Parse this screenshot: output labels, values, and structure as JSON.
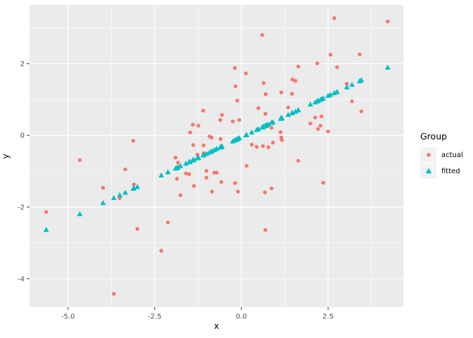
{
  "colors": {
    "actual": "#F8766D",
    "fitted": "#00BFC4",
    "panel_bg": "#EBEBEB",
    "grid": "#FFFFFF",
    "tick_text": "#4D4D4D",
    "axis_title_text": "#000000",
    "legend_key_bg": "#F2F2F2",
    "tick_mark": "#333333"
  },
  "chart_data": {
    "type": "scatter",
    "title": "",
    "xlabel": "x",
    "ylabel": "y",
    "xlim": [
      -6.11,
      4.67
    ],
    "ylim": [
      -4.79,
      3.64
    ],
    "grid": "white major+minor gridlines on gray panel",
    "x_ticks": {
      "values": [
        -5.0,
        -2.5,
        0.0,
        2.5
      ],
      "labels": [
        "-5.0",
        "-2.5",
        "0.0",
        "2.5"
      ],
      "minor": [
        -3.75,
        -1.25,
        1.25,
        3.75
      ]
    },
    "y_ticks": {
      "values": [
        -4,
        -2,
        0,
        2
      ],
      "labels": [
        "-4",
        "-2",
        "0",
        "2"
      ],
      "minor": [
        -3,
        -1,
        1,
        3
      ]
    },
    "legend": {
      "title": "Group",
      "position": "right",
      "items": [
        {
          "label": "actual",
          "shape": "circle",
          "color": "#F8766D"
        },
        {
          "label": "fitted",
          "shape": "triangle",
          "color": "#00BFC4"
        }
      ]
    },
    "fitted_line": {
      "slope": 0.46,
      "intercept": -0.055
    },
    "series": [
      {
        "name": "actual",
        "shape": "circle",
        "color": "#F8766D",
        "points": [
          [
            -5.63,
            -2.14
          ],
          [
            -4.66,
            -0.69
          ],
          [
            -3.99,
            -1.46
          ],
          [
            -3.68,
            -4.42
          ],
          [
            -3.51,
            -1.75
          ],
          [
            -3.35,
            -0.95
          ],
          [
            -3.12,
            -0.15
          ],
          [
            -3.1,
            -1.37
          ],
          [
            -3.0,
            -2.61
          ],
          [
            -2.31,
            -3.22
          ],
          [
            -2.12,
            -2.43
          ],
          [
            -1.9,
            -0.62
          ],
          [
            -1.86,
            -1.21
          ],
          [
            -1.83,
            -0.76
          ],
          [
            -1.76,
            -1.67
          ],
          [
            -1.6,
            -1.06
          ],
          [
            -1.51,
            -1.08
          ],
          [
            -1.48,
            0.08
          ],
          [
            -1.4,
            0.3
          ],
          [
            -1.39,
            -0.27
          ],
          [
            -1.37,
            -1.41
          ],
          [
            -1.27,
            -0.54
          ],
          [
            -1.24,
            0.27
          ],
          [
            -1.1,
            0.69
          ],
          [
            -1.09,
            -0.5
          ],
          [
            -1.09,
            -0.28
          ],
          [
            -1.01,
            -0.99
          ],
          [
            -1.01,
            -1.18
          ],
          [
            -0.92,
            -0.03
          ],
          [
            -0.86,
            -0.06
          ],
          [
            -0.85,
            -1.57
          ],
          [
            -0.78,
            -1.04
          ],
          [
            -0.71,
            -1.04
          ],
          [
            -0.61,
            0.43
          ],
          [
            -0.6,
            -0.1
          ],
          [
            -0.58,
            -1.3
          ],
          [
            -0.56,
            0.57
          ],
          [
            -0.25,
            0.39
          ],
          [
            -0.19,
            1.88
          ],
          [
            -0.18,
            -1.33
          ],
          [
            -0.17,
            1.37
          ],
          [
            -0.12,
            0.97
          ],
          [
            -0.1,
            -1.57
          ],
          [
            -0.06,
            0.43
          ],
          [
            0.13,
            1.73
          ],
          [
            0.15,
            -0.85
          ],
          [
            0.3,
            -0.26
          ],
          [
            0.44,
            -0.32
          ],
          [
            0.49,
            0.76
          ],
          [
            0.6,
            2.8
          ],
          [
            0.62,
            -0.3
          ],
          [
            0.64,
            1.46
          ],
          [
            0.68,
            -1.59
          ],
          [
            0.69,
            0.6
          ],
          [
            0.69,
            -2.64
          ],
          [
            0.7,
            1.15
          ],
          [
            0.73,
            0.3
          ],
          [
            0.78,
            -0.33
          ],
          [
            0.87,
            0.21
          ],
          [
            0.87,
            -1.48
          ],
          [
            0.91,
            -0.2
          ],
          [
            1.13,
            0.09
          ],
          [
            1.15,
            -0.06
          ],
          [
            1.15,
            1.2
          ],
          [
            1.17,
            -0.13
          ],
          [
            1.35,
            0.78
          ],
          [
            1.46,
            1.16
          ],
          [
            1.47,
            1.56
          ],
          [
            1.56,
            1.52
          ],
          [
            1.64,
            1.92
          ],
          [
            1.64,
            -0.71
          ],
          [
            1.99,
            0.33
          ],
          [
            2.13,
            0.5
          ],
          [
            2.19,
            2.01
          ],
          [
            2.21,
            0.18
          ],
          [
            2.28,
            0.27
          ],
          [
            2.31,
            0.53
          ],
          [
            2.36,
            -1.32
          ],
          [
            2.5,
            0.11
          ],
          [
            2.57,
            2.25
          ],
          [
            2.68,
            3.27
          ],
          [
            2.76,
            1.9
          ],
          [
            3.04,
            1.44
          ],
          [
            3.19,
            0.95
          ],
          [
            3.41,
            2.26
          ],
          [
            3.46,
            0.67
          ],
          [
            4.22,
            3.18
          ]
        ]
      },
      {
        "name": "fitted",
        "shape": "triangle",
        "color": "#00BFC4",
        "points": [
          [
            -5.63,
            -2.64
          ],
          [
            -4.66,
            -2.2
          ],
          [
            -3.99,
            -1.89
          ],
          [
            -3.68,
            -1.75
          ],
          [
            -3.51,
            -1.67
          ],
          [
            -3.35,
            -1.6
          ],
          [
            -3.12,
            -1.49
          ],
          [
            -3.1,
            -1.48
          ],
          [
            -3.0,
            -1.44
          ],
          [
            -2.31,
            -1.12
          ],
          [
            -2.12,
            -1.03
          ],
          [
            -1.9,
            -0.93
          ],
          [
            -1.86,
            -0.91
          ],
          [
            -1.83,
            -0.9
          ],
          [
            -1.76,
            -0.86
          ],
          [
            -1.6,
            -0.79
          ],
          [
            -1.51,
            -0.75
          ],
          [
            -1.48,
            -0.74
          ],
          [
            -1.4,
            -0.7
          ],
          [
            -1.39,
            -0.69
          ],
          [
            -1.37,
            -0.69
          ],
          [
            -1.27,
            -0.64
          ],
          [
            -1.24,
            -0.63
          ],
          [
            -1.1,
            -0.56
          ],
          [
            -1.09,
            -0.56
          ],
          [
            -1.09,
            -0.56
          ],
          [
            -1.01,
            -0.52
          ],
          [
            -1.01,
            -0.52
          ],
          [
            -0.92,
            -0.48
          ],
          [
            -0.86,
            -0.45
          ],
          [
            -0.85,
            -0.45
          ],
          [
            -0.78,
            -0.41
          ],
          [
            -0.71,
            -0.38
          ],
          [
            -0.61,
            -0.34
          ],
          [
            -0.6,
            -0.33
          ],
          [
            -0.58,
            -0.32
          ],
          [
            -0.56,
            -0.31
          ],
          [
            -0.25,
            -0.17
          ],
          [
            -0.19,
            -0.14
          ],
          [
            -0.18,
            -0.14
          ],
          [
            -0.17,
            -0.13
          ],
          [
            -0.12,
            -0.11
          ],
          [
            -0.1,
            -0.1
          ],
          [
            -0.06,
            -0.08
          ],
          [
            0.13,
            0.0
          ],
          [
            0.15,
            0.01
          ],
          [
            0.3,
            0.08
          ],
          [
            0.44,
            0.15
          ],
          [
            0.49,
            0.17
          ],
          [
            0.6,
            0.22
          ],
          [
            0.62,
            0.23
          ],
          [
            0.64,
            0.24
          ],
          [
            0.68,
            0.26
          ],
          [
            0.69,
            0.26
          ],
          [
            0.69,
            0.26
          ],
          [
            0.7,
            0.27
          ],
          [
            0.73,
            0.28
          ],
          [
            0.78,
            0.3
          ],
          [
            0.87,
            0.35
          ],
          [
            0.87,
            0.35
          ],
          [
            0.91,
            0.36
          ],
          [
            1.13,
            0.46
          ],
          [
            1.15,
            0.47
          ],
          [
            1.15,
            0.47
          ],
          [
            1.17,
            0.48
          ],
          [
            1.35,
            0.57
          ],
          [
            1.46,
            0.62
          ],
          [
            1.47,
            0.62
          ],
          [
            1.56,
            0.66
          ],
          [
            1.64,
            0.7
          ],
          [
            1.64,
            0.7
          ],
          [
            1.99,
            0.86
          ],
          [
            2.13,
            0.92
          ],
          [
            2.19,
            0.95
          ],
          [
            2.21,
            0.96
          ],
          [
            2.28,
            0.99
          ],
          [
            2.31,
            1.01
          ],
          [
            2.36,
            1.03
          ],
          [
            2.5,
            1.1
          ],
          [
            2.57,
            1.13
          ],
          [
            2.68,
            1.18
          ],
          [
            2.76,
            1.21
          ],
          [
            3.04,
            1.34
          ],
          [
            3.19,
            1.41
          ],
          [
            3.41,
            1.51
          ],
          [
            3.46,
            1.54
          ],
          [
            4.22,
            1.89
          ]
        ]
      }
    ]
  }
}
